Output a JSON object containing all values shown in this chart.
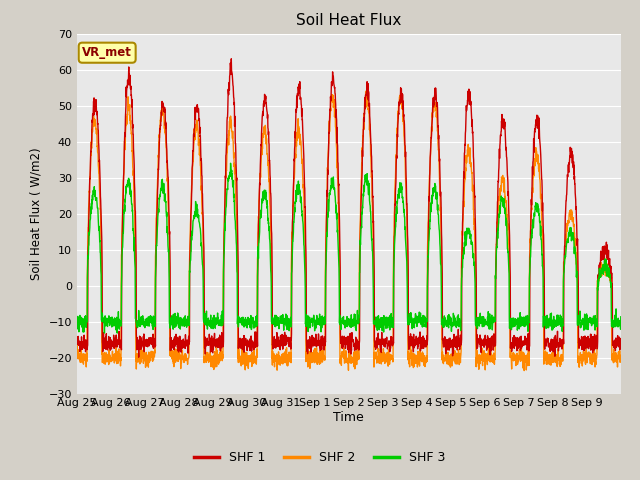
{
  "title": "Soil Heat Flux",
  "ylabel": "Soil Heat Flux ( W/m2)",
  "xlabel": "Time",
  "ylim": [
    -30,
    70
  ],
  "yticks": [
    -30,
    -20,
    -10,
    0,
    10,
    20,
    30,
    40,
    50,
    60,
    70
  ],
  "fig_bg_color": "#d4d0c8",
  "plot_bg_color": "#e8e8e8",
  "grid_color": "#ffffff",
  "colors": {
    "SHF 1": "#cc0000",
    "SHF 2": "#ff8800",
    "SHF 3": "#00cc00"
  },
  "legend_label": "VR_met",
  "date_labels": [
    "Aug 25",
    "Aug 26",
    "Aug 27",
    "Aug 28",
    "Aug 29",
    "Aug 30",
    "Aug 31",
    "Sep 1",
    "Sep 2",
    "Sep 3",
    "Sep 4",
    "Sep 5",
    "Sep 6",
    "Sep 7",
    "Sep 8",
    "Sep 9"
  ],
  "n_days": 16,
  "pts_per_day": 144,
  "shf1_peaks": [
    51,
    58,
    50,
    50,
    60,
    52,
    55,
    57,
    54,
    53,
    53,
    53,
    46,
    46,
    37,
    10
  ],
  "shf2_peaks": [
    46,
    49,
    49,
    44,
    45,
    43,
    43,
    52,
    52,
    52,
    51,
    37,
    29,
    36,
    20,
    5
  ],
  "shf3_peaks": [
    26,
    29,
    28,
    21,
    32,
    26,
    27,
    29,
    30,
    27,
    27,
    15,
    24,
    22,
    15,
    5
  ],
  "shf1_trough": -16,
  "shf2_trough": -20,
  "shf3_trough": -10,
  "day_start": 0.32,
  "day_end": 0.75,
  "line_width": 1.0
}
